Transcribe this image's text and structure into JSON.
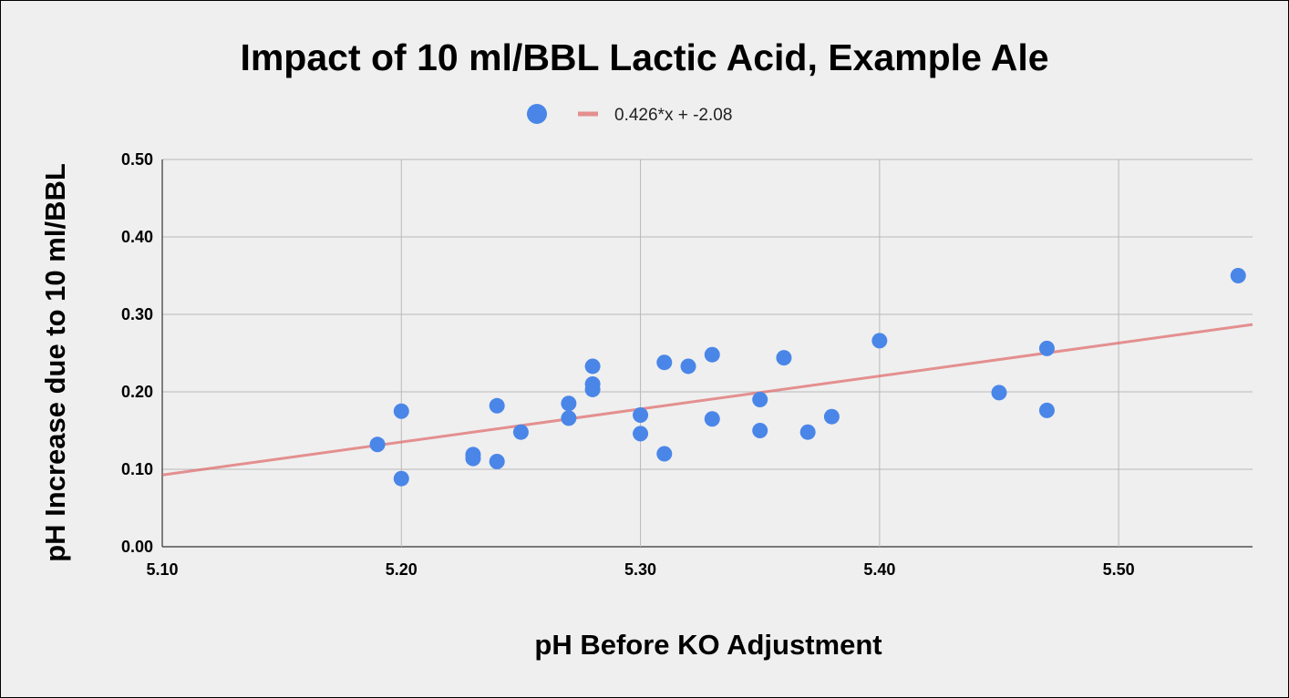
{
  "chart_data": {
    "type": "scatter",
    "title": "Impact of 10 ml/BBL Lactic Acid, Example Ale",
    "xlabel": "pH Before KO Adjustment",
    "ylabel": "pH Increase due to 10 ml/BBL",
    "xlim": [
      5.1,
      5.556
    ],
    "ylim": [
      0.0,
      0.5
    ],
    "x_ticks": [
      "5.10",
      "5.20",
      "5.30",
      "5.40",
      "5.50"
    ],
    "x_tick_values": [
      5.1,
      5.2,
      5.3,
      5.4,
      5.5
    ],
    "y_ticks": [
      "0.00",
      "0.10",
      "0.20",
      "0.30",
      "0.40",
      "0.50"
    ],
    "y_tick_values": [
      0.0,
      0.1,
      0.2,
      0.3,
      0.4,
      0.5
    ],
    "grid": true,
    "legend_position": "top",
    "series": [
      {
        "name": "",
        "kind": "points",
        "color": "#4a86e8",
        "x": [
          5.19,
          5.2,
          5.2,
          5.23,
          5.23,
          5.24,
          5.24,
          5.25,
          5.27,
          5.27,
          5.28,
          5.28,
          5.28,
          5.3,
          5.3,
          5.31,
          5.31,
          5.32,
          5.33,
          5.33,
          5.35,
          5.35,
          5.36,
          5.37,
          5.38,
          5.4,
          5.45,
          5.47,
          5.47,
          5.55
        ],
        "y": [
          0.132,
          0.175,
          0.088,
          0.119,
          0.114,
          0.182,
          0.11,
          0.148,
          0.185,
          0.166,
          0.233,
          0.21,
          0.203,
          0.17,
          0.146,
          0.238,
          0.12,
          0.233,
          0.248,
          0.165,
          0.19,
          0.15,
          0.244,
          0.148,
          0.168,
          0.266,
          0.199,
          0.256,
          0.176,
          0.35
        ]
      },
      {
        "name": "0.426*x + -2.08",
        "kind": "trendline",
        "color": "#e06666",
        "slope": 0.426,
        "intercept": -2.08,
        "x_range": [
          5.1,
          5.556
        ]
      }
    ]
  }
}
